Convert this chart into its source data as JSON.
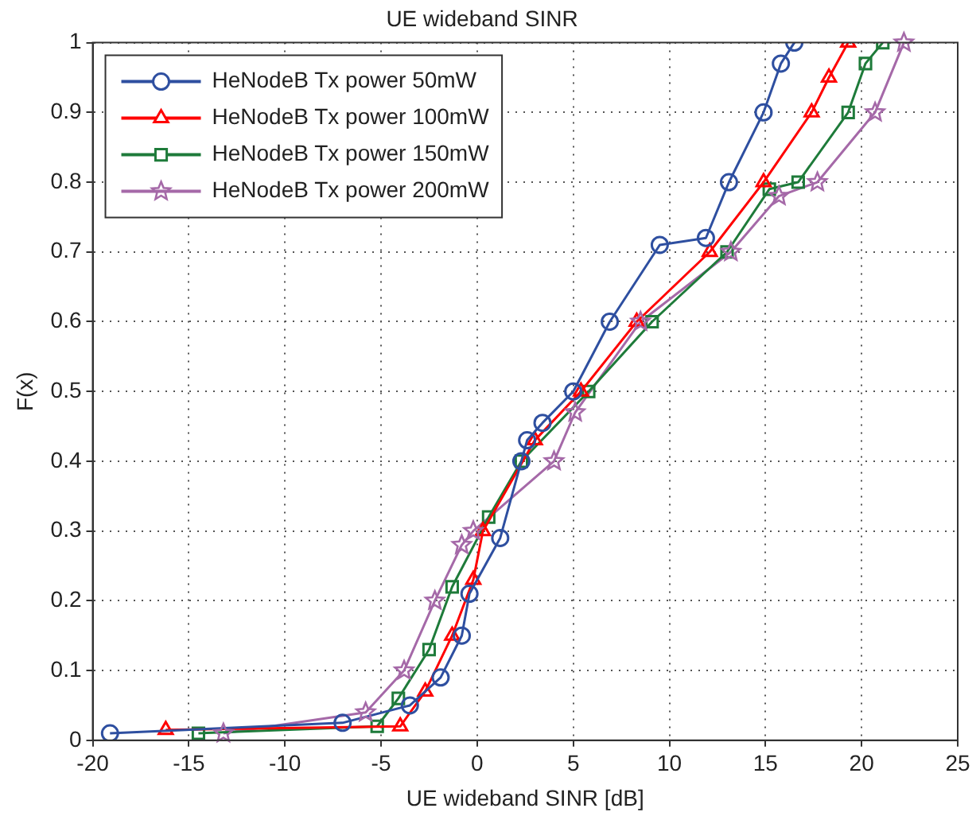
{
  "chart_data": {
    "type": "line",
    "title": "UE wideband SINR",
    "xlabel": "UE wideband SINR [dB]",
    "ylabel": "F(x)",
    "xlim": [
      -20,
      25
    ],
    "xticks": [
      -20,
      -15,
      -10,
      -5,
      0,
      5,
      10,
      15,
      20,
      25
    ],
    "ylim": [
      0,
      1
    ],
    "yticks": [
      0,
      0.1,
      0.2,
      0.3,
      0.4,
      0.5,
      0.6,
      0.7,
      0.8,
      0.9,
      1
    ],
    "grid": true,
    "legend": "top left",
    "line_style": "solid",
    "series": [
      {
        "name": "HeNodeB Tx power 50mW",
        "color": "#2e4fa0",
        "marker": "circle",
        "x": [
          -19.1,
          -7,
          -3.5,
          -1.9,
          -0.8,
          -0.4,
          1.2,
          2.3,
          2.6,
          3.4,
          5,
          6.9,
          9.5,
          11.9,
          13.1,
          14.9,
          15.8,
          16.5
        ],
        "values": [
          0.01,
          0.025,
          0.05,
          0.09,
          0.15,
          0.21,
          0.29,
          0.4,
          0.43,
          0.455,
          0.5,
          0.6,
          0.71,
          0.72,
          0.8,
          0.9,
          0.97,
          1
        ]
      },
      {
        "name": "HeNodeB Tx power 100mW",
        "color": "#ff0000",
        "marker": "triangle",
        "x": [
          -16.2,
          -4,
          -2.7,
          -1.3,
          -0.2,
          0.3,
          3,
          5.4,
          8.3,
          12.1,
          14.9,
          17.4,
          18.3,
          19.3
        ],
        "values": [
          0.015,
          0.02,
          0.07,
          0.15,
          0.23,
          0.3,
          0.43,
          0.5,
          0.6,
          0.7,
          0.8,
          0.9,
          0.95,
          1
        ]
      },
      {
        "name": "HeNodeB Tx power 150mW",
        "color": "#1e7b3a",
        "marker": "square",
        "x": [
          -14.5,
          -5.2,
          -4.1,
          -2.5,
          -1.3,
          0.6,
          2.3,
          5.8,
          9.1,
          13,
          15.2,
          16.7,
          19.3,
          20.2,
          21.1
        ],
        "values": [
          0.01,
          0.02,
          0.06,
          0.13,
          0.22,
          0.32,
          0.4,
          0.5,
          0.6,
          0.7,
          0.79,
          0.8,
          0.9,
          0.97,
          1
        ]
      },
      {
        "name": "HeNodeB Tx power 200mW",
        "color": "#a569a8",
        "marker": "star",
        "x": [
          -13.2,
          -5.8,
          -3.8,
          -2.2,
          -0.8,
          -0.2,
          4,
          5.1,
          8.5,
          13.2,
          15.7,
          17.7,
          20.7,
          22.2
        ],
        "values": [
          0.01,
          0.04,
          0.1,
          0.2,
          0.28,
          0.3,
          0.4,
          0.47,
          0.6,
          0.7,
          0.78,
          0.8,
          0.9,
          1
        ]
      }
    ]
  }
}
